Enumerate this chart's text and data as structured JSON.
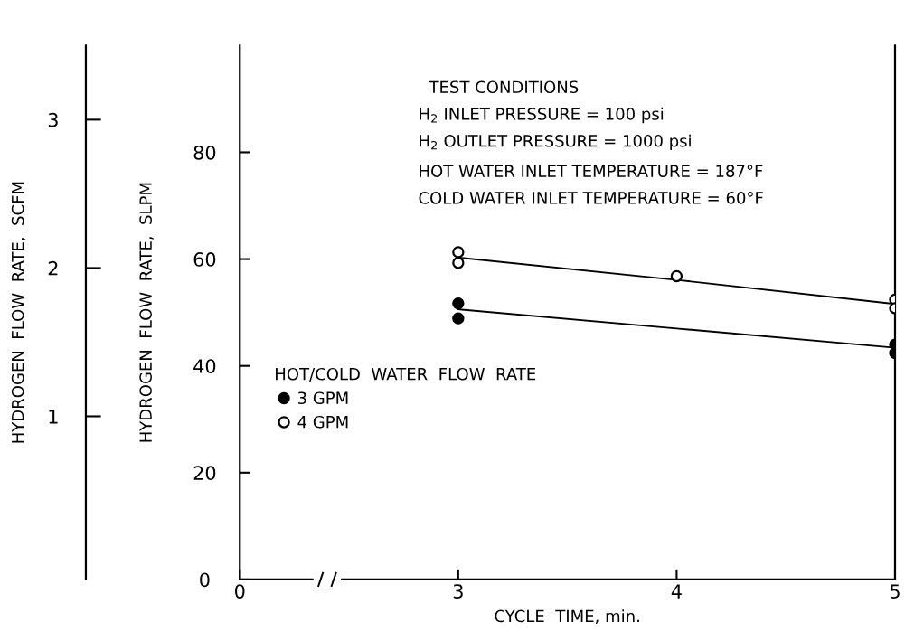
{
  "chart_data": {
    "type": "scatter",
    "xlabel": "CYCLE  TIME, min.",
    "ylabel": "HYDROGEN  FLOW  RATE,  SLPM",
    "y2label": "HYDROGEN  FLOW  RATE,  SCFM",
    "legend_title": "HOT/COLD  WATER  FLOW  RATE",
    "legend": "bottom left",
    "marker": "circle",
    "grid": false,
    "categories": [
      "0",
      "3",
      "4",
      "5"
    ],
    "series": [
      {
        "name": "3 GPM",
        "color": "#000000",
        "x": [
          "3",
          "3",
          "5",
          "5"
        ],
        "values": [
          51.7,
          48.9,
          44.0,
          42.4
        ]
      },
      {
        "name": "4 GPM",
        "color": "#ffffff",
        "x": [
          "3",
          "3",
          "4",
          "5",
          "5"
        ],
        "values": [
          61.3,
          59.3,
          56.8,
          52.4,
          50.8
        ]
      },
      {
        "type": "line",
        "marker": "none",
        "color": "#000000",
        "x": [
          "3",
          "4",
          "5"
        ],
        "values": [
          60.3,
          56.1,
          51.6
        ]
      },
      {
        "type": "line",
        "marker": "none",
        "color": "#000000",
        "x": [
          "3",
          "4",
          "5"
        ],
        "values": [
          50.6,
          47.0,
          43.4
        ]
      }
    ],
    "ylim": [
      0,
      100
    ],
    "yticks": [
      0,
      20,
      40,
      60,
      80
    ],
    "y2lim": [
      -0.1,
      3.5
    ],
    "y2ticks": [
      1,
      2,
      3
    ],
    "annotations": [
      "TEST CONDITIONS",
      "H$_{2}$ INLET PRESSURE = 100 psi",
      "H$_{2}$ OUTLET PRESSURE = 1000 psi",
      "HOT WATER INLET TEMPERATURE = 187°F",
      "COLD WATER INLET TEMPERATURE = 60°F"
    ]
  }
}
